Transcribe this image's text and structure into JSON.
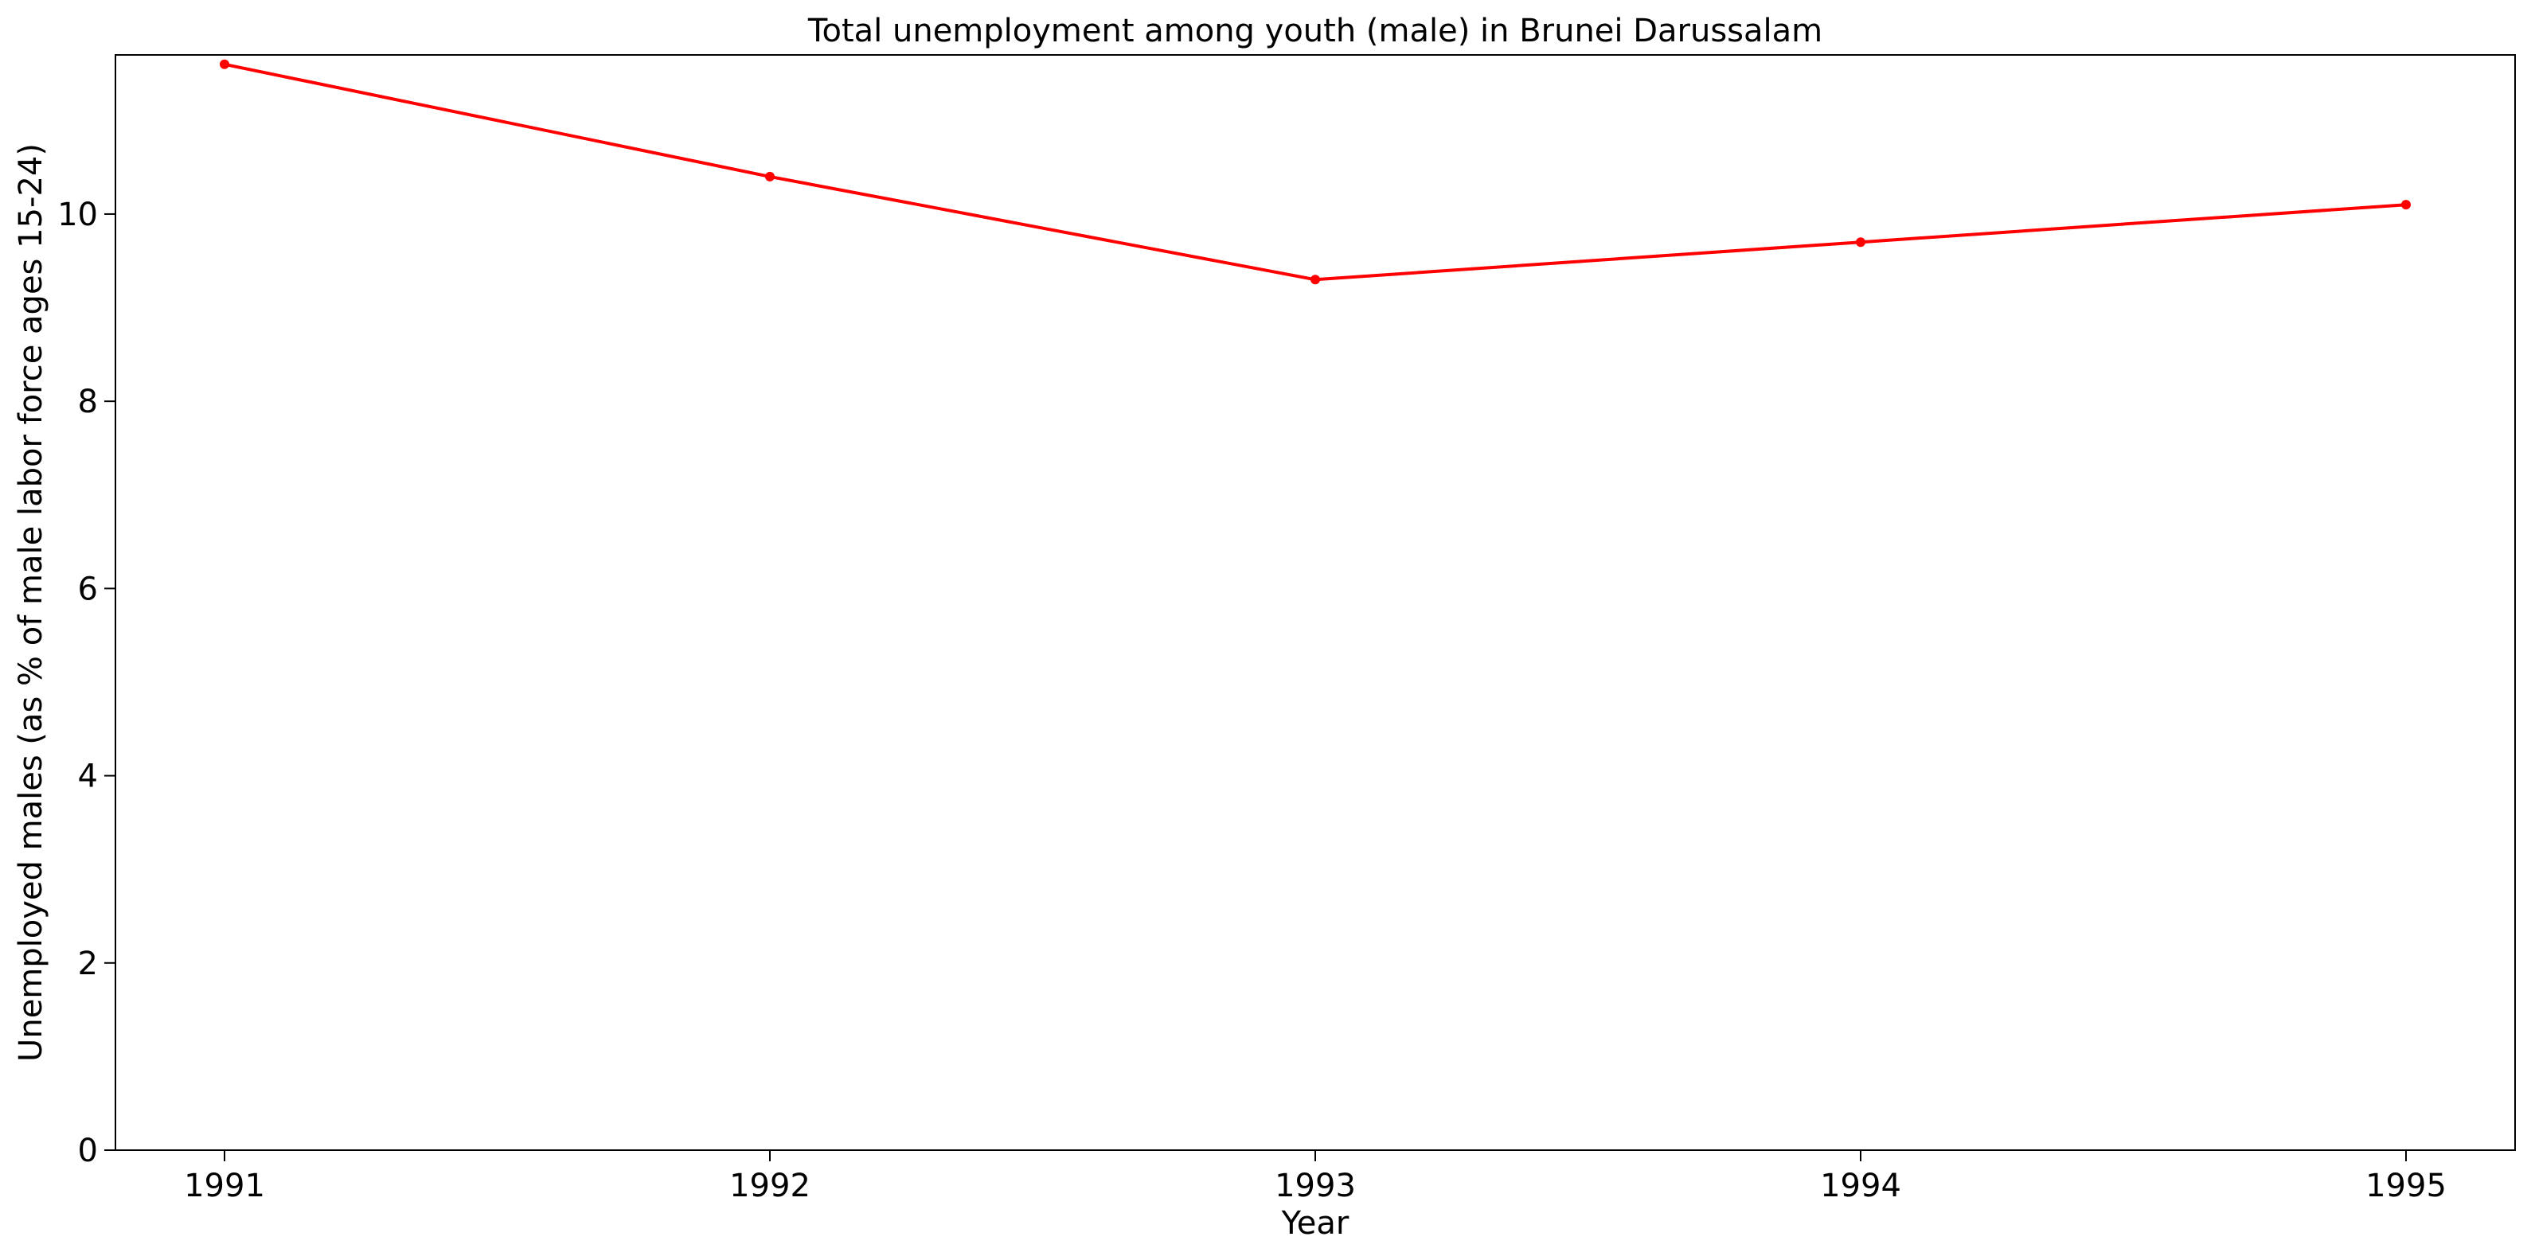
{
  "chart_data": {
    "type": "line",
    "title": "Total unemployment among youth (male) in Brunei Darussalam",
    "xlabel": "Year",
    "ylabel": "Unemployed males (as % of male labor force ages 15-24)",
    "x": [
      1991,
      1992,
      1993,
      1994,
      1995
    ],
    "x_tick_labels": [
      "1991",
      "1992",
      "1993",
      "1994",
      "1995"
    ],
    "series": [
      {
        "values": [
          11.6,
          10.4,
          9.3,
          9.7,
          10.1
        ],
        "color": "#ff0000",
        "marker": "circle"
      }
    ],
    "xlim": [
      1990.8,
      1995.2
    ],
    "ylim": [
      0,
      11.7
    ],
    "y_ticks": [
      0,
      2,
      4,
      6,
      8,
      10
    ],
    "y_tick_labels": [
      "0",
      "2",
      "4",
      "6",
      "8",
      "10"
    ],
    "grid": false,
    "legend": "none"
  }
}
